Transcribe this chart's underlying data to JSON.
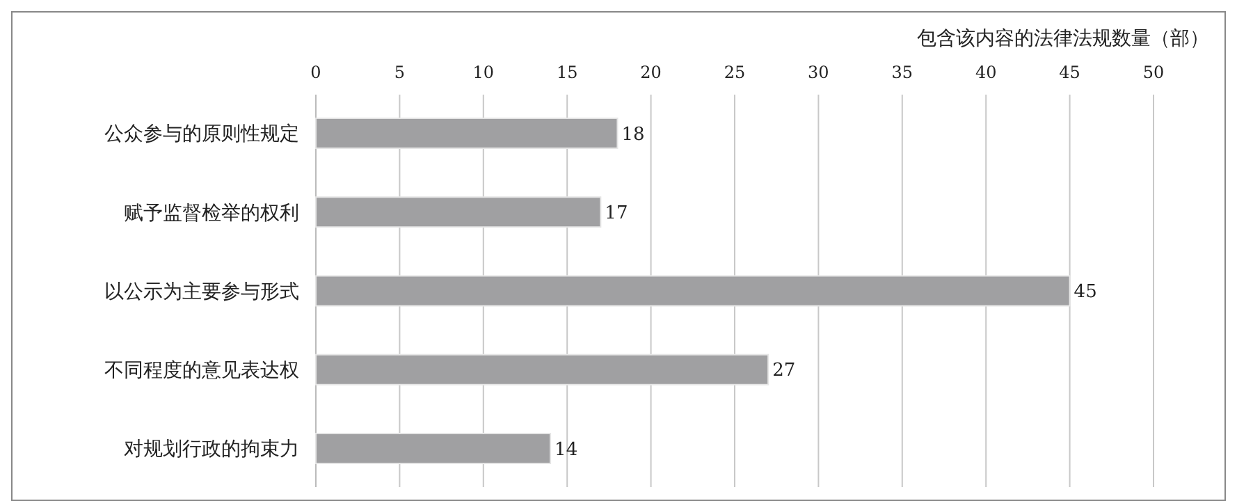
{
  "chart_data": {
    "type": "bar",
    "orientation": "horizontal",
    "xlabel": "包含该内容的法律法规数量（部）",
    "categories": [
      "公众参与的原则性规定",
      "赋予监督检举的权利",
      "以公示为主要参与形式",
      "不同程度的意见表达权",
      "对规划行政的拘束力"
    ],
    "values": [
      18,
      17,
      45,
      27,
      14
    ],
    "color": "#a0a0a2",
    "xlim": [
      0,
      50
    ],
    "xticks": [
      0,
      5,
      10,
      15,
      20,
      25,
      30,
      35,
      40,
      45,
      50
    ],
    "grid": "x",
    "data_labels": true
  }
}
